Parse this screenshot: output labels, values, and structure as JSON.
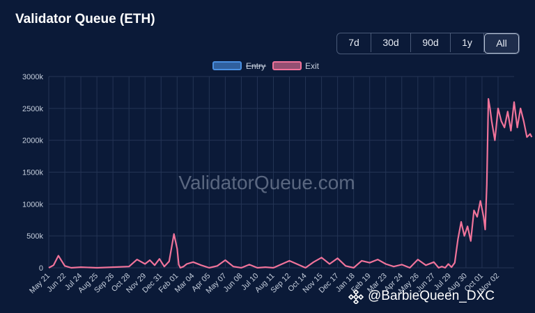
{
  "title": "Validator Queue (ETH)",
  "range_buttons": [
    "7d",
    "30d",
    "90d",
    "1y",
    "All"
  ],
  "active_range": "All",
  "watermark": "ValidatorQueue.com",
  "credit": "@BarbieQueen_DXC",
  "colors": {
    "background": "#0b1a38",
    "entry": "#4a90e2",
    "exit": "#f0739a",
    "grid": "#243455"
  },
  "chart_data": {
    "type": "line",
    "title": "Validator Queue (ETH)",
    "legend": [
      {
        "name": "Entry",
        "hidden": true,
        "color": "#4a90e2"
      },
      {
        "name": "Exit",
        "hidden": false,
        "color": "#f0739a"
      }
    ],
    "legend_position": "top-center",
    "grid": true,
    "ylim": [
      0,
      3000000
    ],
    "y_ticks": [
      "0",
      "500k",
      "1000k",
      "1500k",
      "2000k",
      "2500k",
      "3000k"
    ],
    "x_ticks": [
      "May 21",
      "Jun 22",
      "Jul 24",
      "Aug 25",
      "Sep 26",
      "Oct 28",
      "Nov 29",
      "Dec 31",
      "Feb 01",
      "Mar 04",
      "Apr 05",
      "May 07",
      "Jun 08",
      "Jul 10",
      "Aug 11",
      "Sep 12",
      "Oct 14",
      "Nov 15",
      "Dec 17",
      "Jan 18",
      "Feb 19",
      "Mar 23",
      "Apr 24",
      "May 26",
      "Jun 27",
      "Jul 29",
      "Aug 30",
      "Oct 01",
      "Nov 02"
    ],
    "series": [
      {
        "name": "Exit",
        "x": [
          0,
          0.3,
          0.6,
          1.0,
          1.4,
          2.0,
          3.0,
          4.0,
          5.0,
          5.5,
          6.0,
          6.3,
          6.6,
          6.9,
          7.2,
          7.5,
          7.8,
          8.0,
          8.1,
          8.2,
          8.4,
          8.6,
          9.0,
          9.5,
          10.0,
          10.5,
          11.0,
          11.5,
          12.0,
          12.5,
          13.0,
          13.5,
          14.0,
          15.0,
          16.0,
          16.5,
          17.0,
          17.5,
          18.0,
          18.5,
          19.0,
          19.5,
          20.0,
          20.5,
          21.0,
          21.5,
          22.0,
          22.5,
          23.0,
          23.5,
          24.0,
          24.3,
          24.5,
          24.7,
          24.9,
          25.1,
          25.3,
          25.5,
          25.7,
          25.9,
          26.1,
          26.3,
          26.5,
          26.7,
          26.9,
          27.1,
          27.2,
          27.3,
          27.4,
          27.5,
          27.6,
          27.8,
          28.0,
          28.2,
          28.4,
          28.6,
          28.8,
          29.0,
          29.2,
          29.4,
          29.6,
          29.8,
          30.0,
          30.1
        ],
        "values": [
          0,
          40000,
          190000,
          30000,
          0,
          10000,
          0,
          10000,
          20000,
          130000,
          60000,
          120000,
          40000,
          140000,
          20000,
          100000,
          530000,
          300000,
          50000,
          0,
          20000,
          60000,
          90000,
          40000,
          0,
          30000,
          120000,
          20000,
          0,
          50000,
          0,
          10000,
          0,
          110000,
          0,
          90000,
          160000,
          60000,
          150000,
          30000,
          0,
          110000,
          80000,
          130000,
          60000,
          20000,
          50000,
          0,
          130000,
          40000,
          90000,
          0,
          20000,
          0,
          60000,
          10000,
          80000,
          450000,
          720000,
          500000,
          650000,
          420000,
          900000,
          800000,
          1050000,
          800000,
          600000,
          1300000,
          2650000,
          2500000,
          2300000,
          2000000,
          2500000,
          2300000,
          2200000,
          2450000,
          2150000,
          2600000,
          2200000,
          2500000,
          2300000,
          2050000,
          2100000,
          2050000
        ]
      }
    ]
  }
}
